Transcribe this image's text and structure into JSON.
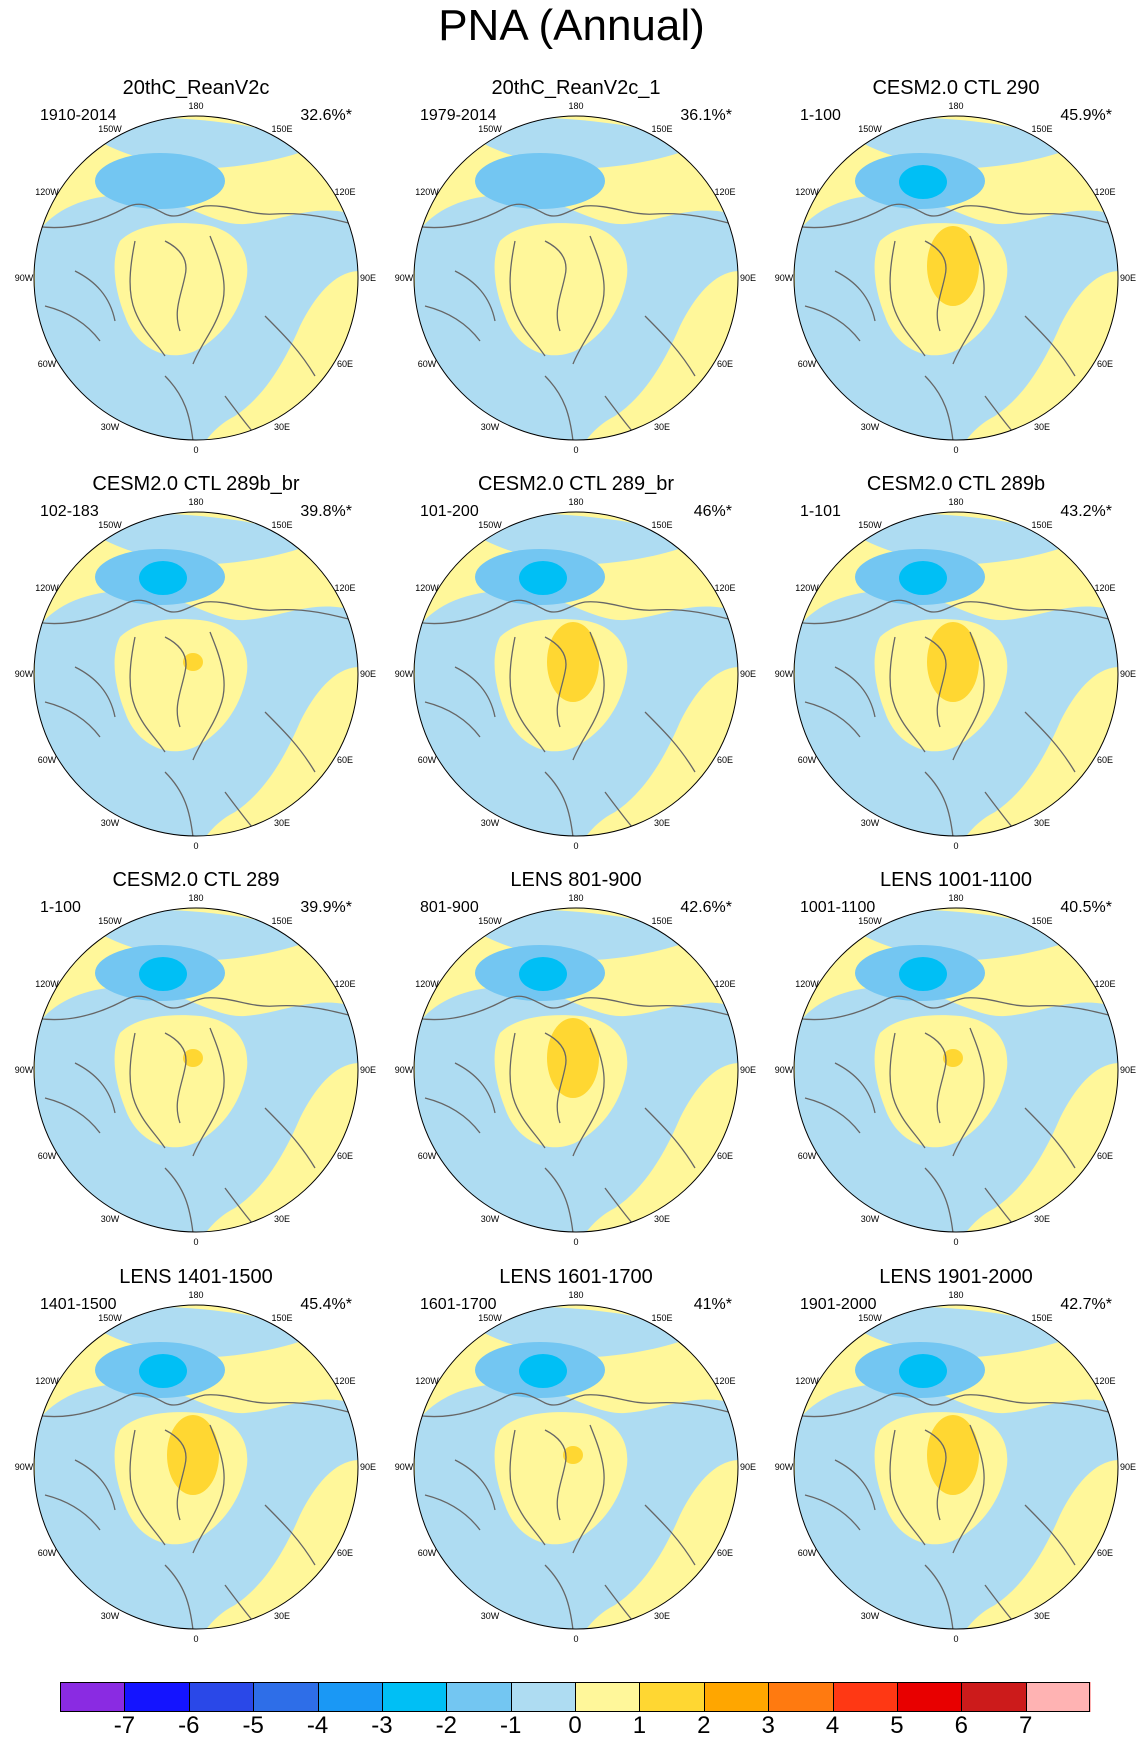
{
  "title": "PNA (Annual)",
  "panels": [
    {
      "title": "20thC_ReanV2c",
      "years": "1910-2014",
      "pct": "32.6%*",
      "neg_strength": 1,
      "pos_strength": 0
    },
    {
      "title": "20thC_ReanV2c_1",
      "years": "1979-2014",
      "pct": "36.1%*",
      "neg_strength": 1,
      "pos_strength": 0
    },
    {
      "title": "CESM2.0 CTL 290",
      "years": "1-100",
      "pct": "45.9%*",
      "neg_strength": 3,
      "pos_strength": 2
    },
    {
      "title": "CESM2.0 CTL 289b_br",
      "years": "102-183",
      "pct": "39.8%*",
      "neg_strength": 3,
      "pos_strength": 1
    },
    {
      "title": "CESM2.0 CTL 289_br",
      "years": "101-200",
      "pct": "46%*",
      "neg_strength": 3,
      "pos_strength": 2
    },
    {
      "title": "CESM2.0 CTL 289b",
      "years": "1-101",
      "pct": "43.2%*",
      "neg_strength": 3,
      "pos_strength": 2
    },
    {
      "title": "CESM2.0 CTL 289",
      "years": "1-100",
      "pct": "39.9%*",
      "neg_strength": 3,
      "pos_strength": 1
    },
    {
      "title": "LENS 801-900",
      "years": "801-900",
      "pct": "42.6%*",
      "neg_strength": 3,
      "pos_strength": 2
    },
    {
      "title": "LENS 1001-1100",
      "years": "1001-1100",
      "pct": "40.5%*",
      "neg_strength": 3,
      "pos_strength": 1
    },
    {
      "title": "LENS 1401-1500",
      "years": "1401-1500",
      "pct": "45.4%*",
      "neg_strength": 3,
      "pos_strength": 2
    },
    {
      "title": "LENS 1601-1700",
      "years": "1601-1700",
      "pct": "41%*",
      "neg_strength": 3,
      "pos_strength": 1
    },
    {
      "title": "LENS 1901-2000",
      "years": "1901-2000",
      "pct": "42.7%*",
      "neg_strength": 3,
      "pos_strength": 2
    }
  ],
  "lon_labels": {
    "l180": "180",
    "l150w": "150W",
    "l150e": "150E",
    "l120w": "120W",
    "l120e": "120E",
    "l90w": "90W",
    "l90e": "90E",
    "l60w": "60W",
    "l60e": "60E",
    "l30w": "30W",
    "l30e": "30E",
    "l0": "0"
  },
  "colorbar": {
    "labels": [
      "-7",
      "-6",
      "-5",
      "-4",
      "-3",
      "-2",
      "-1",
      "0",
      "1",
      "2",
      "3",
      "4",
      "5",
      "6",
      "7"
    ],
    "colors": [
      "#8a2be2",
      "#1414ff",
      "#2a48e8",
      "#2e6ee8",
      "#1a98f5",
      "#00bff5",
      "#73c6f2",
      "#aedcf2",
      "#fff79a",
      "#ffd732",
      "#ffa600",
      "#ff7a10",
      "#ff3814",
      "#e80000",
      "#cc1b1b",
      "#ffb3b3"
    ]
  },
  "palette": {
    "land": "#666666",
    "neg_weak": "#aedcf2",
    "neg_mid": "#73c6f2",
    "neg_strong": "#00bff5",
    "pos_weak": "#fff79a",
    "pos_mid": "#ffd732"
  }
}
